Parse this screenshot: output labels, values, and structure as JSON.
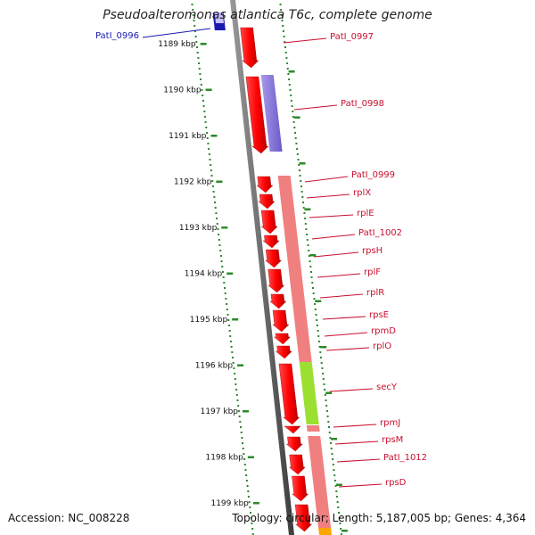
{
  "title": "Pseudoalteromonas atlantica T6c, complete genome",
  "accession": "Accession: NC_008228",
  "summary": "Topology: circular; Length: 5,187,005 bp; Genes: 4,364",
  "colors": {
    "backbone": "#7a7a7a",
    "tick": "#2a8a2a",
    "label_red": "#c8102e",
    "label_blue": "#1a1ab0",
    "cds": "#ff0000",
    "rna_pink": "#f08080",
    "purple": "#8a7ad8",
    "green": "#9be030",
    "orange": "#ffa500"
  },
  "kbp_labels": [
    "1189 kbp",
    "1190 kbp",
    "1191 kbp",
    "1192 kbp",
    "1193 kbp",
    "1194 kbp",
    "1195 kbp",
    "1196 kbp",
    "1197 kbp",
    "1198 kbp",
    "1199 kbp"
  ],
  "gene_labels": [
    {
      "text": "PatI_0996",
      "color": "blue"
    },
    {
      "text": "PatI_0997",
      "color": "red"
    },
    {
      "text": "PatI_0998",
      "color": "red"
    },
    {
      "text": "PatI_0999",
      "color": "red"
    },
    {
      "text": "rplX",
      "color": "red"
    },
    {
      "text": "rplE",
      "color": "red"
    },
    {
      "text": "PatI_1002",
      "color": "red"
    },
    {
      "text": "rpsH",
      "color": "red"
    },
    {
      "text": "rplF",
      "color": "red"
    },
    {
      "text": "rplR",
      "color": "red"
    },
    {
      "text": "rpsE",
      "color": "red"
    },
    {
      "text": "rpmD",
      "color": "red"
    },
    {
      "text": "rplO",
      "color": "red"
    },
    {
      "text": "secY",
      "color": "red"
    },
    {
      "text": "rpmJ",
      "color": "red"
    },
    {
      "text": "rpsM",
      "color": "red"
    },
    {
      "text": "PatI_1012",
      "color": "red"
    },
    {
      "text": "rpsD",
      "color": "red"
    }
  ]
}
